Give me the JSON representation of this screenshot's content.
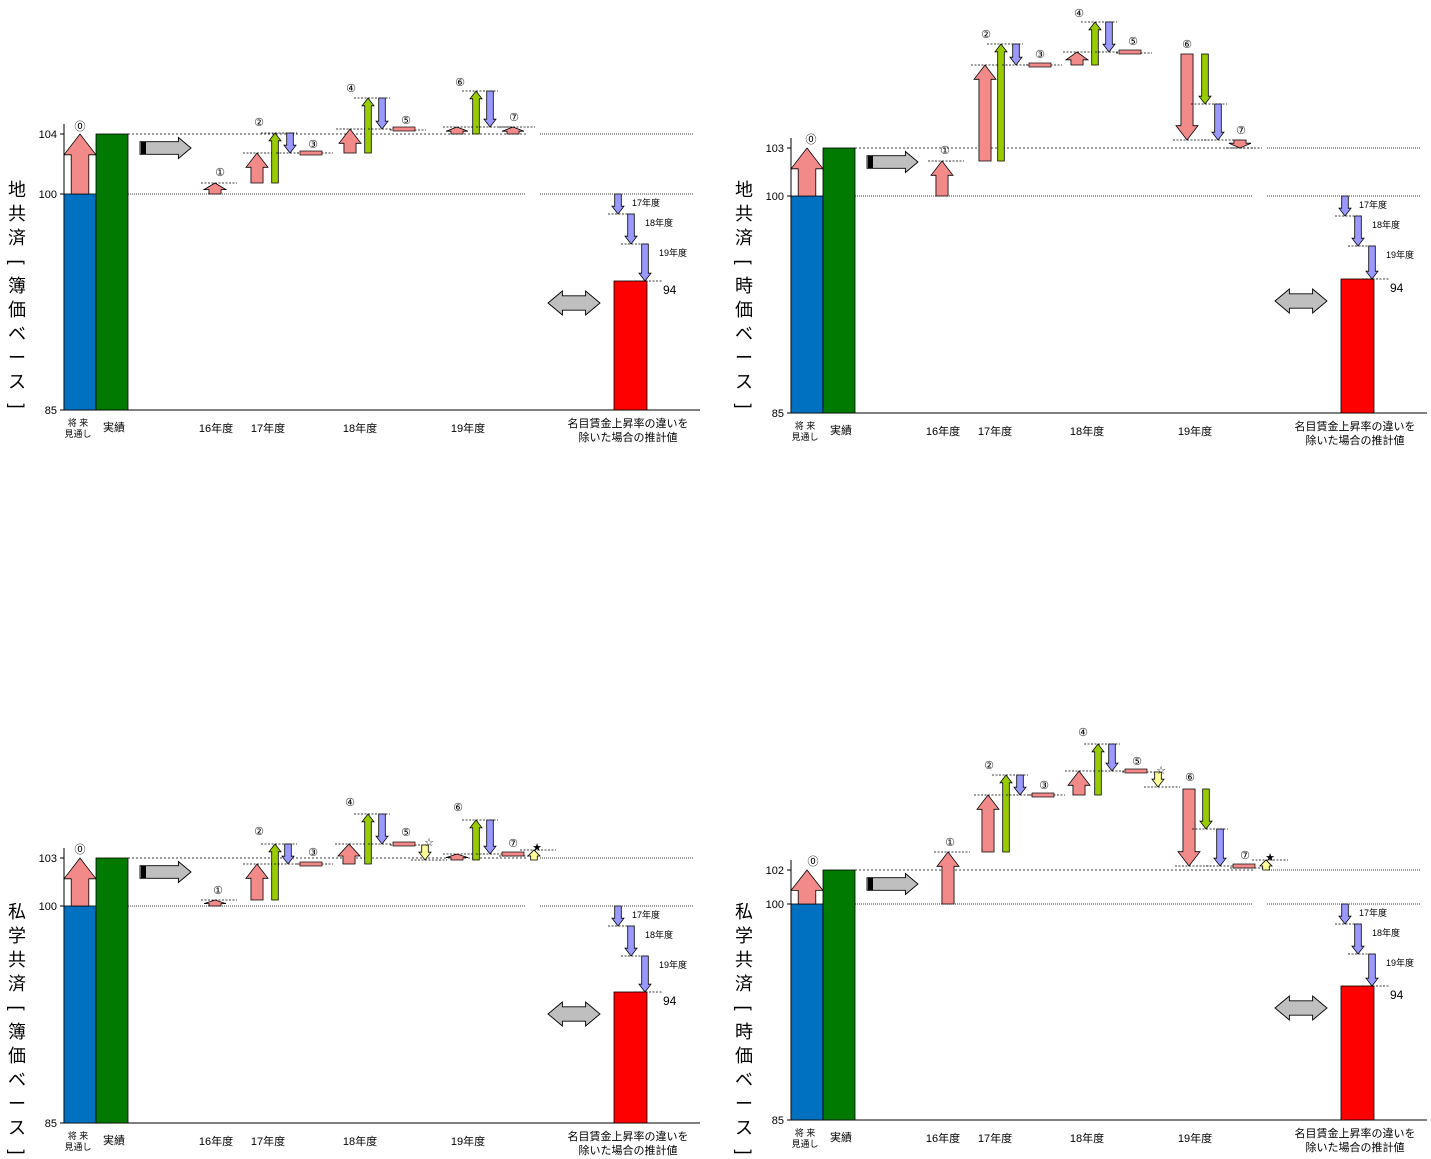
{
  "chart_data": [
    {
      "type": "bar",
      "ylabel": "地共済[簿価ベース]",
      "yticks": [
        85,
        100,
        104
      ],
      "ylim": [
        85,
        104
      ],
      "categories": [
        "将来見通し",
        "実績",
        "16年度",
        "17年度",
        "18年度",
        "19年度",
        "名目賃金上昇率の違いを除いた場合の推計値"
      ],
      "bars": {
        "base": 100,
        "actual": 104,
        "estimate": 94
      },
      "estimate_label": "94",
      "marker_labels": [
        "⓪",
        "①",
        "②",
        "③",
        "④",
        "⑤",
        "⑥",
        "⑦"
      ],
      "decline_labels": [
        "17年度",
        "18年度",
        "19年度"
      ],
      "stars": []
    },
    {
      "type": "bar",
      "ylabel": "地共済[時価ベース]",
      "yticks": [
        85,
        100,
        103
      ],
      "ylim": [
        85,
        103
      ],
      "categories": [
        "将来見通し",
        "実績",
        "16年度",
        "17年度",
        "18年度",
        "19年度",
        "名目賃金上昇率の違いを除いた場合の推計値"
      ],
      "bars": {
        "base": 100,
        "actual": 103,
        "estimate": 94
      },
      "estimate_label": "94",
      "marker_labels": [
        "⓪",
        "①",
        "②",
        "③",
        "④",
        "⑤",
        "⑥",
        "⑦"
      ],
      "decline_labels": [
        "17年度",
        "18年度",
        "19年度"
      ],
      "stars": []
    },
    {
      "type": "bar",
      "ylabel": "私学共済[簿価ベース]",
      "yticks": [
        85,
        100,
        103
      ],
      "ylim": [
        85,
        103
      ],
      "categories": [
        "将来見通し",
        "実績",
        "16年度",
        "17年度",
        "18年度",
        "19年度",
        "名目賃金上昇率の違いを除いた場合の推計値"
      ],
      "bars": {
        "base": 100,
        "actual": 103,
        "estimate": 94
      },
      "estimate_label": "94",
      "marker_labels": [
        "⓪",
        "①",
        "②",
        "③",
        "④",
        "⑤",
        "⑥",
        "⑦"
      ],
      "decline_labels": [
        "17年度",
        "18年度",
        "19年度"
      ],
      "stars": [
        "☆",
        "★"
      ]
    },
    {
      "type": "bar",
      "ylabel": "私学共済[時価ベース]",
      "yticks": [
        85,
        100,
        102
      ],
      "ylim": [
        85,
        102
      ],
      "categories": [
        "将来見通し",
        "実績",
        "16年度",
        "17年度",
        "18年度",
        "19年度",
        "名目賃金上昇率の違いを除いた場合の推計値"
      ],
      "bars": {
        "base": 100,
        "actual": 102,
        "estimate": 94
      },
      "estimate_label": "94",
      "marker_labels": [
        "⓪",
        "①",
        "②",
        "③",
        "④",
        "⑤",
        "⑥",
        "⑦"
      ],
      "decline_labels": [
        "17年度",
        "18年度",
        "19年度"
      ],
      "stars": [
        "☆",
        "★"
      ]
    }
  ],
  "colors": {
    "base": "#0070c0",
    "actual": "#007a00",
    "estimate": "#ff0000",
    "up_arrow": "#f38a8a",
    "green_arrow": "#99cc00",
    "blue_arrow": "#9999ff",
    "yellow_arrow": "#ffff99",
    "gray_arrow": "#bfbfbf"
  }
}
